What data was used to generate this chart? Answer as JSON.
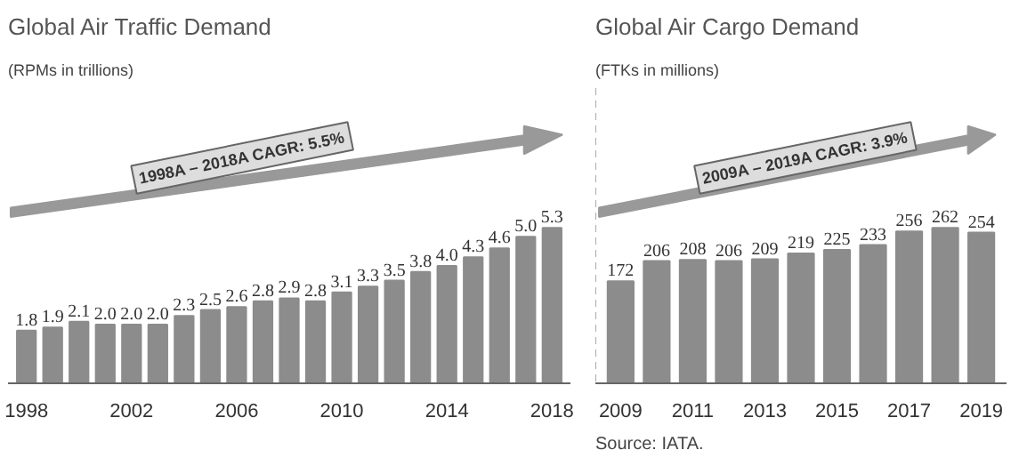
{
  "chart_data": [
    {
      "type": "bar",
      "title": "Global Air Traffic Demand",
      "subtitle": "(RPMs in trillions)",
      "categories": [
        "1998",
        null,
        null,
        null,
        "2002",
        null,
        null,
        null,
        "2006",
        null,
        null,
        null,
        "2010",
        null,
        null,
        null,
        "2014",
        null,
        null,
        null,
        "2018"
      ],
      "values": [
        1.8,
        1.9,
        2.1,
        2.0,
        2.0,
        2.0,
        2.3,
        2.5,
        2.6,
        2.8,
        2.9,
        2.8,
        3.1,
        3.3,
        3.5,
        3.8,
        4.0,
        4.3,
        4.6,
        5.0,
        5.3
      ],
      "color": "#8c8c8c",
      "value_labels": [
        "1.8",
        "1.9",
        "2.1",
        "2.0",
        "2.0",
        "2.0",
        "2.3",
        "2.5",
        "2.6",
        "2.8",
        "2.9",
        "2.8",
        "3.1",
        "3.3",
        "3.5",
        "3.8",
        "4.0",
        "4.3",
        "4.6",
        "5.0",
        "5.3"
      ],
      "annotations": [
        "1998A – 2018A CAGR: 5.5%"
      ]
    },
    {
      "type": "bar",
      "title": "Global Air Cargo Demand",
      "subtitle": "(FTKs in millions)",
      "categories": [
        "2009",
        null,
        "2011",
        null,
        "2013",
        null,
        "2015",
        null,
        "2017",
        null,
        "2019"
      ],
      "values": [
        172,
        206,
        208,
        206,
        209,
        219,
        225,
        233,
        256,
        262,
        254
      ],
      "color": "#8c8c8c",
      "value_labels": [
        "172",
        "206",
        "208",
        "206",
        "209",
        "219",
        "225",
        "233",
        "256",
        "262",
        "254"
      ],
      "annotations": [
        "2009A – 2019A CAGR: 3.9%",
        "Source: IATA."
      ]
    }
  ]
}
